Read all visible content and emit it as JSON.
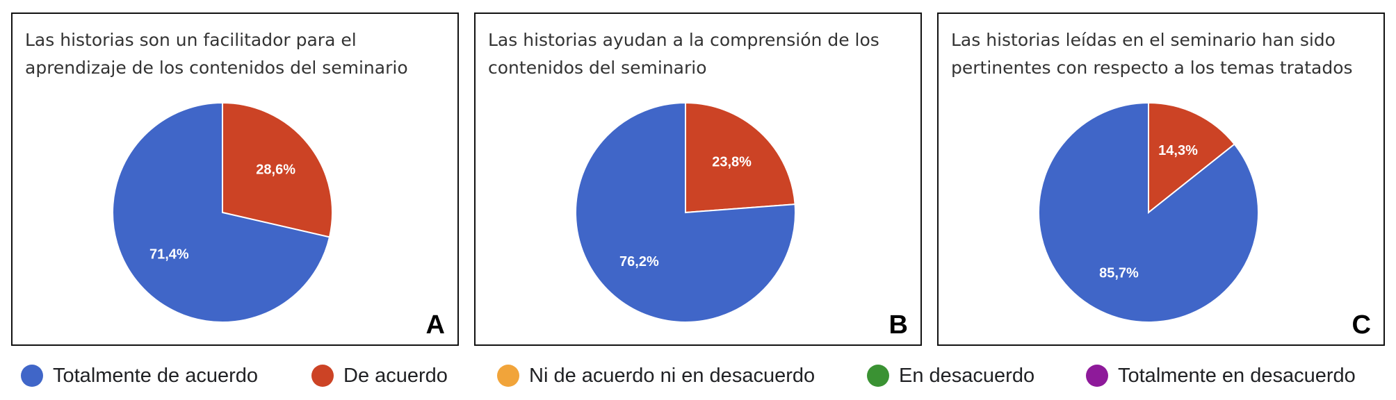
{
  "chart_data": [
    {
      "type": "pie",
      "letter": "A",
      "title": "Las historias son un facilitador para el\naprendizaje  de los contenidos del seminario",
      "slices": [
        {
          "name": "Totalmente de acuerdo",
          "value": 71.4,
          "label": "71,4%",
          "color": "#4066c8"
        },
        {
          "name": "De acuerdo",
          "value": 28.6,
          "label": "28,6%",
          "color": "#cc4325"
        }
      ]
    },
    {
      "type": "pie",
      "letter": "B",
      "title": "Las historias ayudan a la comprensión de  los\ncontenidos del seminario",
      "slices": [
        {
          "name": "Totalmente de acuerdo",
          "value": 76.2,
          "label": "76,2%",
          "color": "#4066c8"
        },
        {
          "name": "De acuerdo",
          "value": 23.8,
          "label": "23,8%",
          "color": "#cc4325"
        }
      ]
    },
    {
      "type": "pie",
      "letter": "C",
      "title": "Las historias leídas en el seminario han sido\npertinentes con respecto a los temas tratados",
      "slices": [
        {
          "name": "Totalmente de acuerdo",
          "value": 85.7,
          "label": "85,7%",
          "color": "#4066c8"
        },
        {
          "name": "De acuerdo",
          "value": 14.3,
          "label": "14,3%",
          "color": "#cc4325"
        }
      ]
    }
  ],
  "legend": {
    "placement": "bottom",
    "items": [
      {
        "label": "Totalmente de acuerdo",
        "color": "#4066c8"
      },
      {
        "label": "De acuerdo",
        "color": "#cc4325"
      },
      {
        "label": "Ni de acuerdo ni en desacuerdo",
        "color": "#f1a43a"
      },
      {
        "label": "En desacuerdo",
        "color": "#3a9233"
      },
      {
        "label": "Totalmente en desacuerdo",
        "color": "#8e1a9a"
      }
    ]
  }
}
